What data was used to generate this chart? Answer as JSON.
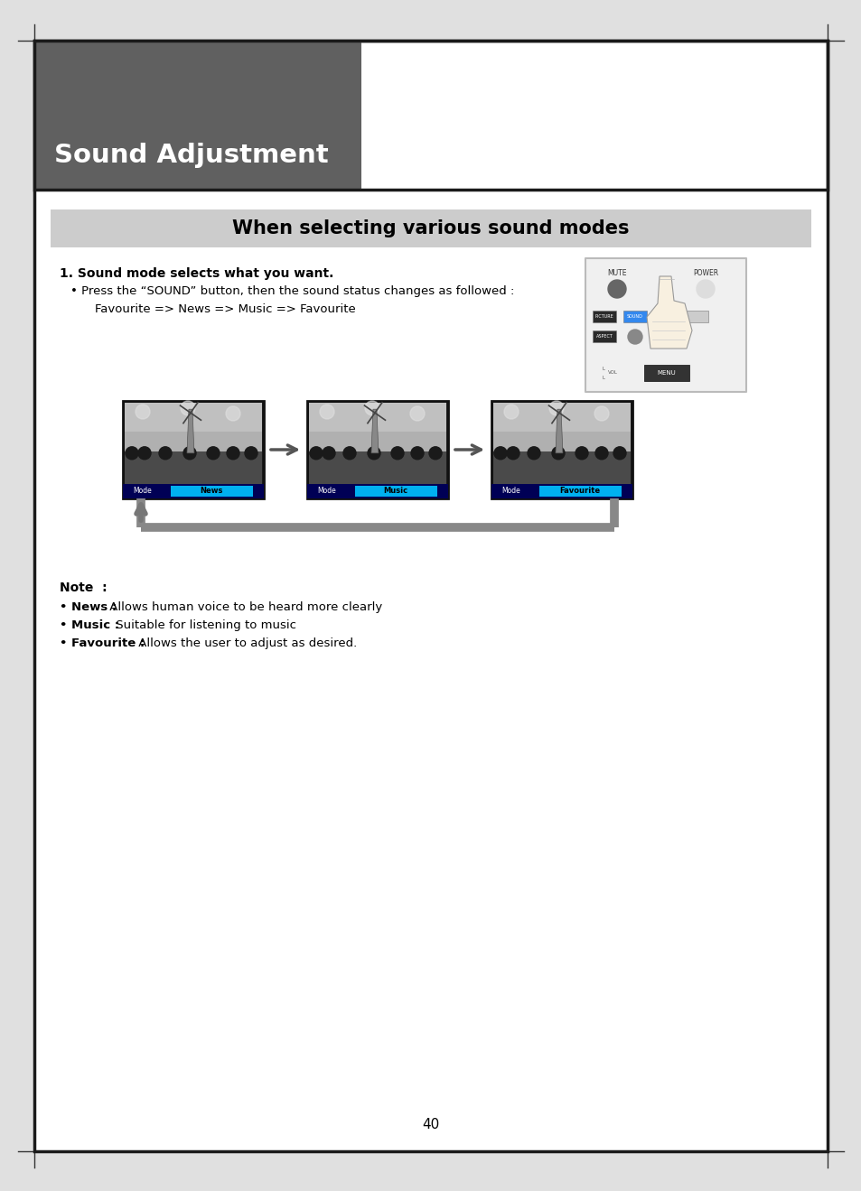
{
  "page_bg": "#ffffff",
  "outer_border_color": "#1a1a1a",
  "page_number": "40",
  "header_bg": "#606060",
  "header_title": "Sound Adjustment",
  "header_title_color": "#ffffff",
  "section_bar_bg": "#cccccc",
  "section_bar_text": "When selecting various sound modes",
  "step1_bold": "1. Sound mode selects what you want.",
  "step1_bullet1": "• Press the “SOUND” button, then the sound status changes as followed :",
  "step1_bullet2": "    Favourite => News => Music => Favourite",
  "note_title": "Note  :",
  "note_line1_bold": "• News :",
  "note_line1_rest": " Allows human voice to be heard more clearly",
  "note_line2_bold": "• Music :",
  "note_line2_rest": " Suitable for listening to music",
  "note_line3_bold": "• Favourite :",
  "note_line3_rest": " Allows the user to adjust as desired.",
  "screen_labels": [
    "News",
    "Music",
    "Favourite"
  ],
  "cyan_color": "#00b0f0",
  "arrow_gray": "#888888"
}
